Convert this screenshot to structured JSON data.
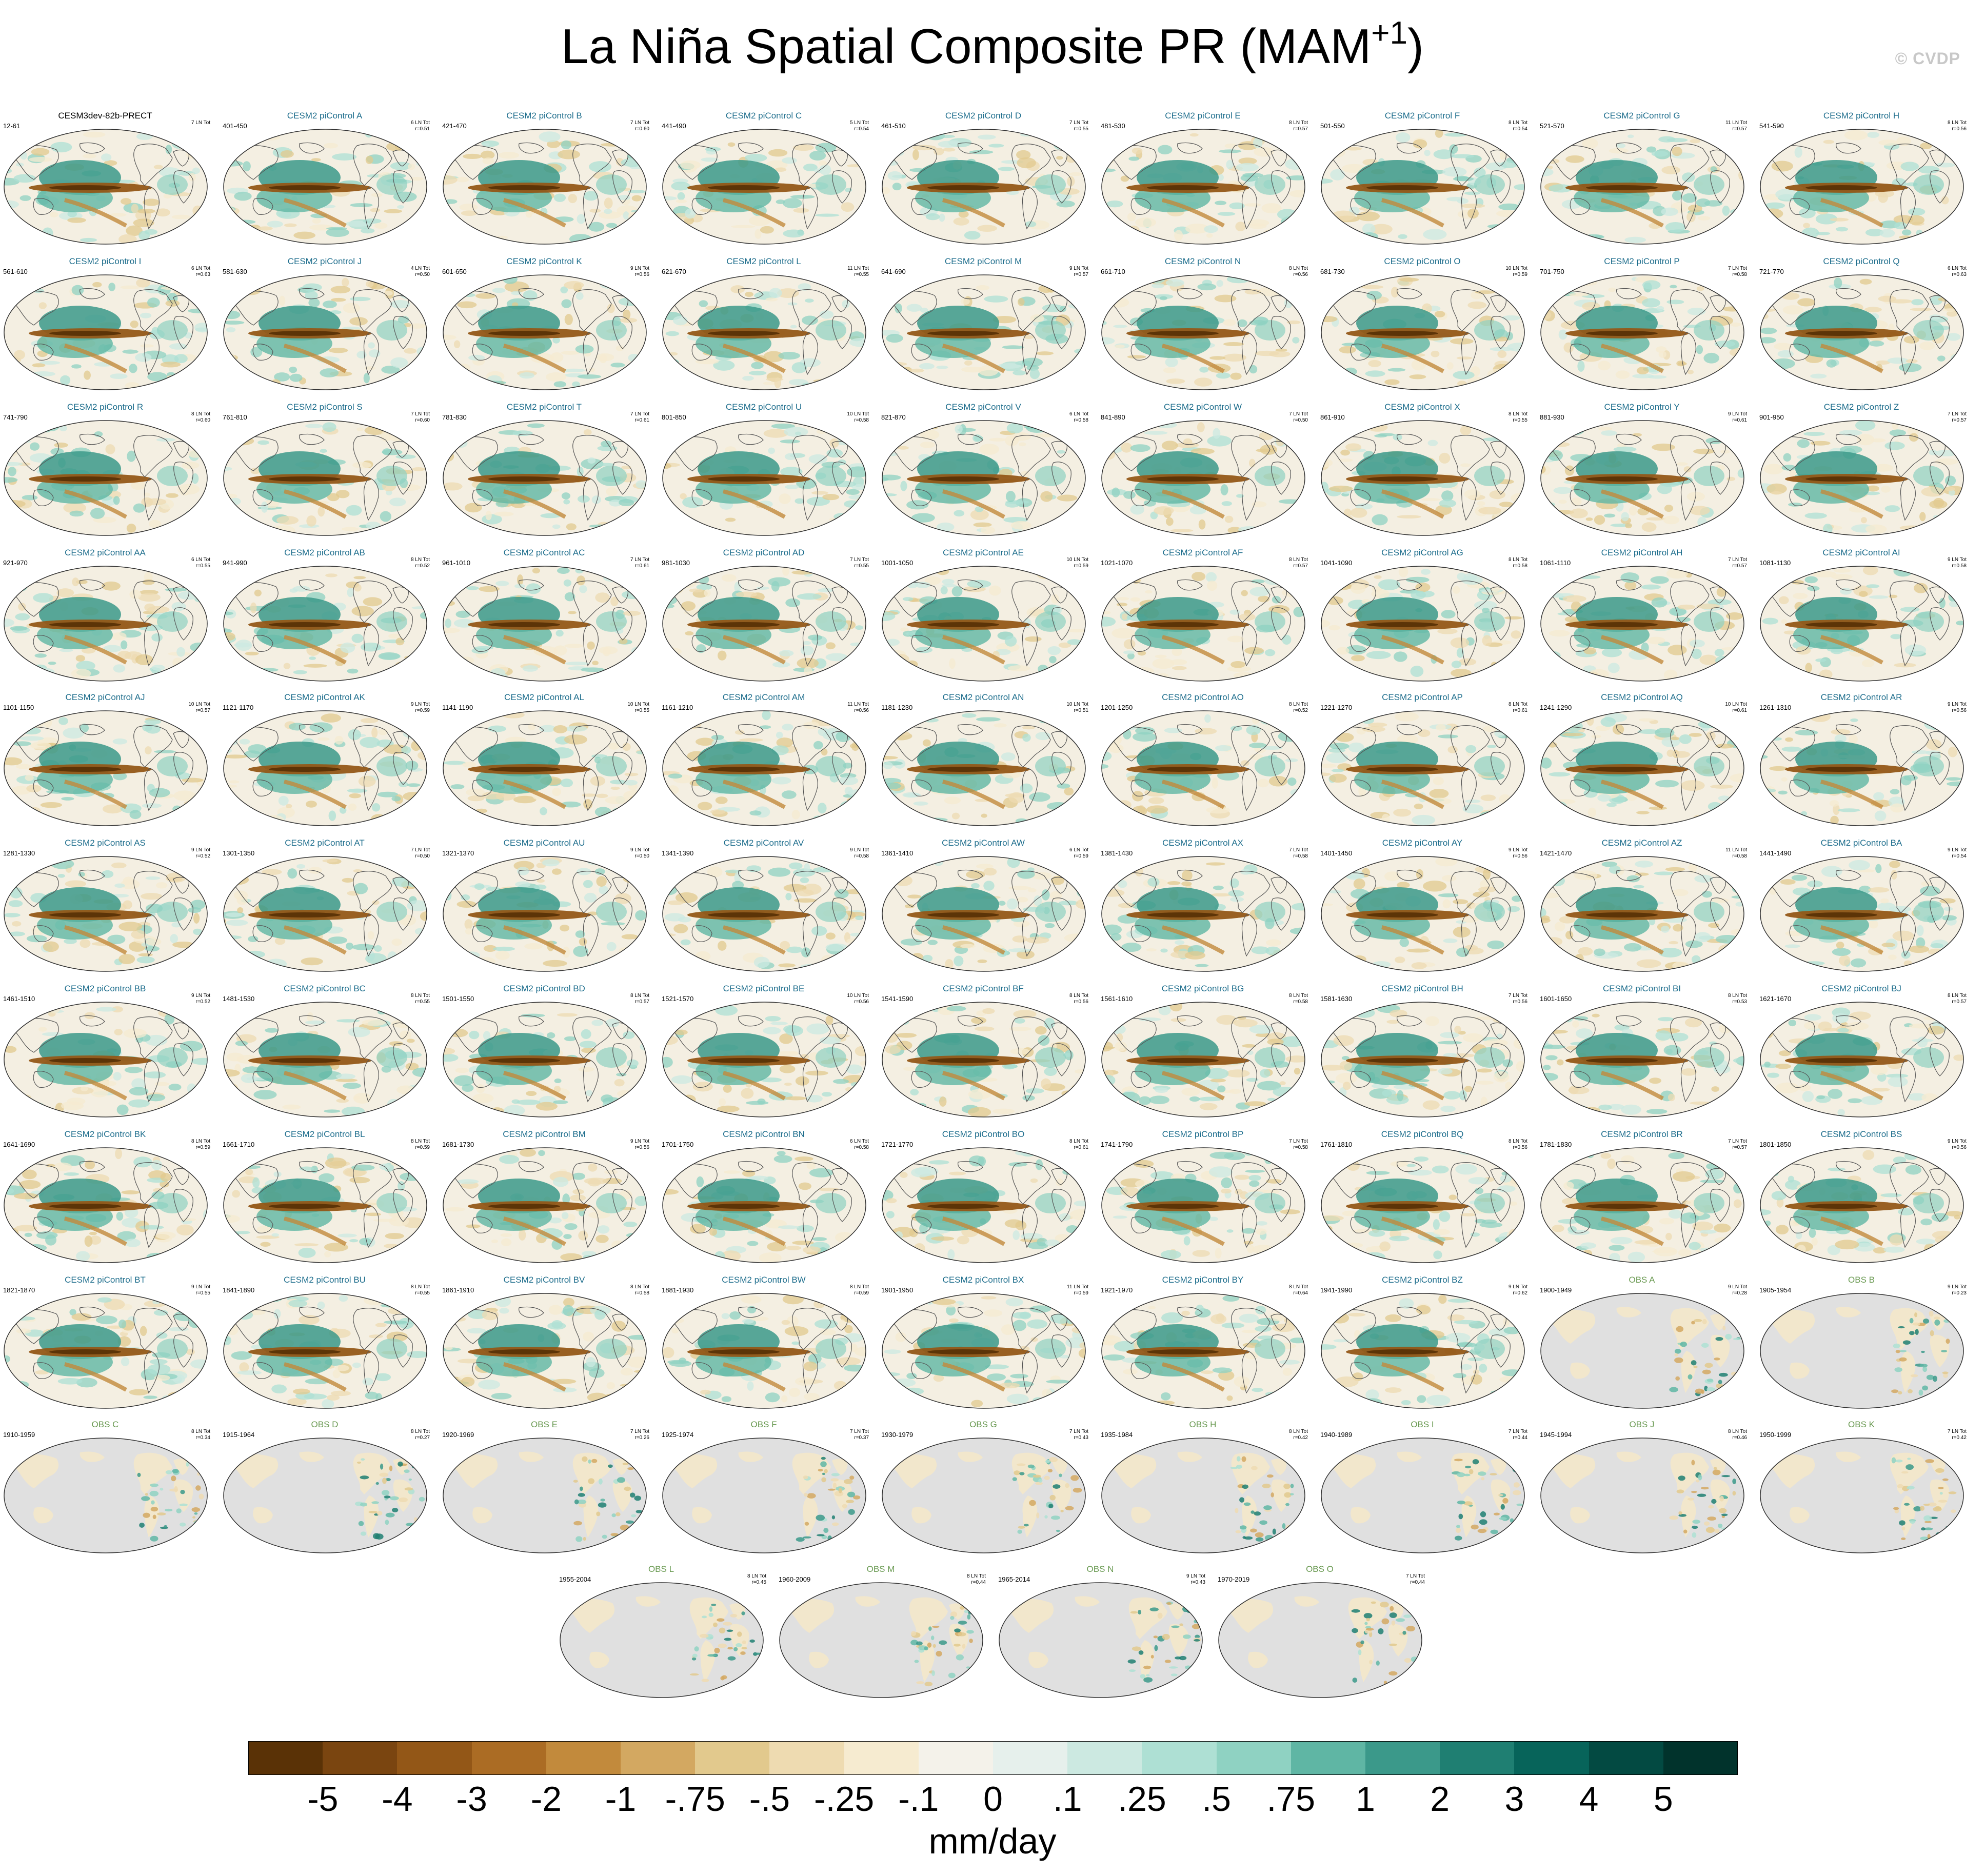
{
  "figure": {
    "title_main": "La Niña Spatial Composite PR (MAM",
    "title_sup": "+1",
    "title_close": ")",
    "credit": "© CVDP",
    "colors": {
      "model_title": "#1d6d8c",
      "obs_title": "#6a9a52",
      "first_title": "#000000",
      "land_obs": "#e0e0e0",
      "ocean_model": "#f4efe2"
    }
  },
  "chart_data": {
    "type": "heatmap",
    "title": "La Niña Spatial Composite PR (MAM+1)",
    "units": "mm/day",
    "colorbar": {
      "tick_labels": [
        "-5",
        "-4",
        "-3",
        "-2",
        "-1",
        "-.75",
        "-.5",
        "-.25",
        "-.1",
        "0",
        ".1",
        ".25",
        ".5",
        ".75",
        "1",
        "2",
        "3",
        "4",
        "5"
      ],
      "colors": [
        "#5a3206",
        "#7a4510",
        "#935717",
        "#ab6c24",
        "#c28a3c",
        "#d3a861",
        "#e2c98d",
        "#eedbb1",
        "#f6ebd0",
        "#f4f2ea",
        "#e6f0ec",
        "#cce9e1",
        "#aee0d4",
        "#8fd2c2",
        "#5fb6a4",
        "#3b998a",
        "#1f7f72",
        "#07645a",
        "#034a42",
        "#01332c"
      ]
    },
    "panels": [
      {
        "title": "CESM3dev-82b-PRECT",
        "years": "12-61",
        "ln": "7 LN Tot",
        "r": "",
        "kind": "first"
      },
      {
        "title": "CESM2 piControl A",
        "years": "401-450",
        "ln": "6 LN Tot",
        "r": "r=0.51",
        "kind": "model"
      },
      {
        "title": "CESM2 piControl B",
        "years": "421-470",
        "ln": "7 LN Tot",
        "r": "r=0.60",
        "kind": "model"
      },
      {
        "title": "CESM2 piControl C",
        "years": "441-490",
        "ln": "5 LN Tot",
        "r": "r=0.54",
        "kind": "model"
      },
      {
        "title": "CESM2 piControl D",
        "years": "461-510",
        "ln": "7 LN Tot",
        "r": "r=0.55",
        "kind": "model"
      },
      {
        "title": "CESM2 piControl E",
        "years": "481-530",
        "ln": "8 LN Tot",
        "r": "r=0.57",
        "kind": "model"
      },
      {
        "title": "CESM2 piControl F",
        "years": "501-550",
        "ln": "8 LN Tot",
        "r": "r=0.54",
        "kind": "model"
      },
      {
        "title": "CESM2 piControl G",
        "years": "521-570",
        "ln": "11 LN Tot",
        "r": "r=0.57",
        "kind": "model"
      },
      {
        "title": "CESM2 piControl H",
        "years": "541-590",
        "ln": "8 LN Tot",
        "r": "r=0.56",
        "kind": "model"
      },
      {
        "title": "CESM2 piControl I",
        "years": "561-610",
        "ln": "6 LN Tot",
        "r": "r=0.63",
        "kind": "model"
      },
      {
        "title": "CESM2 piControl J",
        "years": "581-630",
        "ln": "4 LN Tot",
        "r": "r=0.50",
        "kind": "model"
      },
      {
        "title": "CESM2 piControl K",
        "years": "601-650",
        "ln": "9 LN Tot",
        "r": "r=0.56",
        "kind": "model"
      },
      {
        "title": "CESM2 piControl L",
        "years": "621-670",
        "ln": "11 LN Tot",
        "r": "r=0.55",
        "kind": "model"
      },
      {
        "title": "CESM2 piControl M",
        "years": "641-690",
        "ln": "9 LN Tot",
        "r": "r=0.57",
        "kind": "model"
      },
      {
        "title": "CESM2 piControl N",
        "years": "661-710",
        "ln": "8 LN Tot",
        "r": "r=0.56",
        "kind": "model"
      },
      {
        "title": "CESM2 piControl O",
        "years": "681-730",
        "ln": "10 LN Tot",
        "r": "r=0.59",
        "kind": "model"
      },
      {
        "title": "CESM2 piControl P",
        "years": "701-750",
        "ln": "7 LN Tot",
        "r": "r=0.58",
        "kind": "model"
      },
      {
        "title": "CESM2 piControl Q",
        "years": "721-770",
        "ln": "6 LN Tot",
        "r": "r=0.63",
        "kind": "model"
      },
      {
        "title": "CESM2 piControl R",
        "years": "741-790",
        "ln": "8 LN Tot",
        "r": "r=0.60",
        "kind": "model"
      },
      {
        "title": "CESM2 piControl S",
        "years": "761-810",
        "ln": "7 LN Tot",
        "r": "r=0.60",
        "kind": "model"
      },
      {
        "title": "CESM2 piControl T",
        "years": "781-830",
        "ln": "7 LN Tot",
        "r": "r=0.61",
        "kind": "model"
      },
      {
        "title": "CESM2 piControl U",
        "years": "801-850",
        "ln": "10 LN Tot",
        "r": "r=0.58",
        "kind": "model"
      },
      {
        "title": "CESM2 piControl V",
        "years": "821-870",
        "ln": "6 LN Tot",
        "r": "r=0.58",
        "kind": "model"
      },
      {
        "title": "CESM2 piControl W",
        "years": "841-890",
        "ln": "7 LN Tot",
        "r": "r=0.50",
        "kind": "model"
      },
      {
        "title": "CESM2 piControl X",
        "years": "861-910",
        "ln": "8 LN Tot",
        "r": "r=0.55",
        "kind": "model"
      },
      {
        "title": "CESM2 piControl Y",
        "years": "881-930",
        "ln": "9 LN Tot",
        "r": "r=0.61",
        "kind": "model"
      },
      {
        "title": "CESM2 piControl Z",
        "years": "901-950",
        "ln": "7 LN Tot",
        "r": "r=0.57",
        "kind": "model"
      },
      {
        "title": "CESM2 piControl AA",
        "years": "921-970",
        "ln": "6 LN Tot",
        "r": "r=0.55",
        "kind": "model"
      },
      {
        "title": "CESM2 piControl AB",
        "years": "941-990",
        "ln": "8 LN Tot",
        "r": "r=0.52",
        "kind": "model"
      },
      {
        "title": "CESM2 piControl AC",
        "years": "961-1010",
        "ln": "7 LN Tot",
        "r": "r=0.61",
        "kind": "model"
      },
      {
        "title": "CESM2 piControl AD",
        "years": "981-1030",
        "ln": "7 LN Tot",
        "r": "r=0.55",
        "kind": "model"
      },
      {
        "title": "CESM2 piControl AE",
        "years": "1001-1050",
        "ln": "10 LN Tot",
        "r": "r=0.59",
        "kind": "model"
      },
      {
        "title": "CESM2 piControl AF",
        "years": "1021-1070",
        "ln": "8 LN Tot",
        "r": "r=0.57",
        "kind": "model"
      },
      {
        "title": "CESM2 piControl AG",
        "years": "1041-1090",
        "ln": "8 LN Tot",
        "r": "r=0.58",
        "kind": "model"
      },
      {
        "title": "CESM2 piControl AH",
        "years": "1061-1110",
        "ln": "7 LN Tot",
        "r": "r=0.57",
        "kind": "model"
      },
      {
        "title": "CESM2 piControl AI",
        "years": "1081-1130",
        "ln": "9 LN Tot",
        "r": "r=0.58",
        "kind": "model"
      },
      {
        "title": "CESM2 piControl AJ",
        "years": "1101-1150",
        "ln": "10 LN Tot",
        "r": "r=0.57",
        "kind": "model"
      },
      {
        "title": "CESM2 piControl AK",
        "years": "1121-1170",
        "ln": "9 LN Tot",
        "r": "r=0.59",
        "kind": "model"
      },
      {
        "title": "CESM2 piControl AL",
        "years": "1141-1190",
        "ln": "10 LN Tot",
        "r": "r=0.55",
        "kind": "model"
      },
      {
        "title": "CESM2 piControl AM",
        "years": "1161-1210",
        "ln": "11 LN Tot",
        "r": "r=0.56",
        "kind": "model"
      },
      {
        "title": "CESM2 piControl AN",
        "years": "1181-1230",
        "ln": "10 LN Tot",
        "r": "r=0.51",
        "kind": "model"
      },
      {
        "title": "CESM2 piControl AO",
        "years": "1201-1250",
        "ln": "8 LN Tot",
        "r": "r=0.52",
        "kind": "model"
      },
      {
        "title": "CESM2 piControl AP",
        "years": "1221-1270",
        "ln": "8 LN Tot",
        "r": "r=0.61",
        "kind": "model"
      },
      {
        "title": "CESM2 piControl AQ",
        "years": "1241-1290",
        "ln": "10 LN Tot",
        "r": "r=0.61",
        "kind": "model"
      },
      {
        "title": "CESM2 piControl AR",
        "years": "1261-1310",
        "ln": "9 LN Tot",
        "r": "r=0.56",
        "kind": "model"
      },
      {
        "title": "CESM2 piControl AS",
        "years": "1281-1330",
        "ln": "9 LN Tot",
        "r": "r=0.52",
        "kind": "model"
      },
      {
        "title": "CESM2 piControl AT",
        "years": "1301-1350",
        "ln": "7 LN Tot",
        "r": "r=0.50",
        "kind": "model"
      },
      {
        "title": "CESM2 piControl AU",
        "years": "1321-1370",
        "ln": "9 LN Tot",
        "r": "r=0.50",
        "kind": "model"
      },
      {
        "title": "CESM2 piControl AV",
        "years": "1341-1390",
        "ln": "9 LN Tot",
        "r": "r=0.58",
        "kind": "model"
      },
      {
        "title": "CESM2 piControl AW",
        "years": "1361-1410",
        "ln": "6 LN Tot",
        "r": "r=0.59",
        "kind": "model"
      },
      {
        "title": "CESM2 piControl AX",
        "years": "1381-1430",
        "ln": "7 LN Tot",
        "r": "r=0.58",
        "kind": "model"
      },
      {
        "title": "CESM2 piControl AY",
        "years": "1401-1450",
        "ln": "9 LN Tot",
        "r": "r=0.56",
        "kind": "model"
      },
      {
        "title": "CESM2 piControl AZ",
        "years": "1421-1470",
        "ln": "11 LN Tot",
        "r": "r=0.58",
        "kind": "model"
      },
      {
        "title": "CESM2 piControl BA",
        "years": "1441-1490",
        "ln": "9 LN Tot",
        "r": "r=0.54",
        "kind": "model"
      },
      {
        "title": "CESM2 piControl BB",
        "years": "1461-1510",
        "ln": "9 LN Tot",
        "r": "r=0.52",
        "kind": "model"
      },
      {
        "title": "CESM2 piControl BC",
        "years": "1481-1530",
        "ln": "8 LN Tot",
        "r": "r=0.55",
        "kind": "model"
      },
      {
        "title": "CESM2 piControl BD",
        "years": "1501-1550",
        "ln": "8 LN Tot",
        "r": "r=0.57",
        "kind": "model"
      },
      {
        "title": "CESM2 piControl BE",
        "years": "1521-1570",
        "ln": "10 LN Tot",
        "r": "r=0.56",
        "kind": "model"
      },
      {
        "title": "CESM2 piControl BF",
        "years": "1541-1590",
        "ln": "8 LN Tot",
        "r": "r=0.56",
        "kind": "model"
      },
      {
        "title": "CESM2 piControl BG",
        "years": "1561-1610",
        "ln": "8 LN Tot",
        "r": "r=0.58",
        "kind": "model"
      },
      {
        "title": "CESM2 piControl BH",
        "years": "1581-1630",
        "ln": "7 LN Tot",
        "r": "r=0.56",
        "kind": "model"
      },
      {
        "title": "CESM2 piControl BI",
        "years": "1601-1650",
        "ln": "8 LN Tot",
        "r": "r=0.53",
        "kind": "model"
      },
      {
        "title": "CESM2 piControl BJ",
        "years": "1621-1670",
        "ln": "8 LN Tot",
        "r": "r=0.57",
        "kind": "model"
      },
      {
        "title": "CESM2 piControl BK",
        "years": "1641-1690",
        "ln": "8 LN Tot",
        "r": "r=0.59",
        "kind": "model"
      },
      {
        "title": "CESM2 piControl BL",
        "years": "1661-1710",
        "ln": "8 LN Tot",
        "r": "r=0.59",
        "kind": "model"
      },
      {
        "title": "CESM2 piControl BM",
        "years": "1681-1730",
        "ln": "9 LN Tot",
        "r": "r=0.56",
        "kind": "model"
      },
      {
        "title": "CESM2 piControl BN",
        "years": "1701-1750",
        "ln": "6 LN Tot",
        "r": "r=0.58",
        "kind": "model"
      },
      {
        "title": "CESM2 piControl BO",
        "years": "1721-1770",
        "ln": "8 LN Tot",
        "r": "r=0.61",
        "kind": "model"
      },
      {
        "title": "CESM2 piControl BP",
        "years": "1741-1790",
        "ln": "7 LN Tot",
        "r": "r=0.58",
        "kind": "model"
      },
      {
        "title": "CESM2 piControl BQ",
        "years": "1761-1810",
        "ln": "8 LN Tot",
        "r": "r=0.56",
        "kind": "model"
      },
      {
        "title": "CESM2 piControl BR",
        "years": "1781-1830",
        "ln": "7 LN Tot",
        "r": "r=0.57",
        "kind": "model"
      },
      {
        "title": "CESM2 piControl BS",
        "years": "1801-1850",
        "ln": "9 LN Tot",
        "r": "r=0.56",
        "kind": "model"
      },
      {
        "title": "CESM2 piControl BT",
        "years": "1821-1870",
        "ln": "9 LN Tot",
        "r": "r=0.55",
        "kind": "model"
      },
      {
        "title": "CESM2 piControl BU",
        "years": "1841-1890",
        "ln": "8 LN Tot",
        "r": "r=0.55",
        "kind": "model"
      },
      {
        "title": "CESM2 piControl BV",
        "years": "1861-1910",
        "ln": "8 LN Tot",
        "r": "r=0.58",
        "kind": "model"
      },
      {
        "title": "CESM2 piControl BW",
        "years": "1881-1930",
        "ln": "8 LN Tot",
        "r": "r=0.59",
        "kind": "model"
      },
      {
        "title": "CESM2 piControl BX",
        "years": "1901-1950",
        "ln": "11 LN Tot",
        "r": "r=0.59",
        "kind": "model"
      },
      {
        "title": "CESM2 piControl BY",
        "years": "1921-1970",
        "ln": "8 LN Tot",
        "r": "r=0.64",
        "kind": "model"
      },
      {
        "title": "CESM2 piControl BZ",
        "years": "1941-1990",
        "ln": "9 LN Tot",
        "r": "r=0.62",
        "kind": "model"
      },
      {
        "title": "OBS A",
        "years": "1900-1949",
        "ln": "9 LN Tot",
        "r": "r=0.28",
        "kind": "obs"
      },
      {
        "title": "OBS B",
        "years": "1905-1954",
        "ln": "9 LN Tot",
        "r": "r=0.23",
        "kind": "obs"
      },
      {
        "title": "OBS C",
        "years": "1910-1959",
        "ln": "8 LN Tot",
        "r": "r=0.34",
        "kind": "obs"
      },
      {
        "title": "OBS D",
        "years": "1915-1964",
        "ln": "8 LN Tot",
        "r": "r=0.27",
        "kind": "obs"
      },
      {
        "title": "OBS E",
        "years": "1920-1969",
        "ln": "7 LN Tot",
        "r": "r=0.26",
        "kind": "obs"
      },
      {
        "title": "OBS F",
        "years": "1925-1974",
        "ln": "7 LN Tot",
        "r": "r=0.37",
        "kind": "obs"
      },
      {
        "title": "OBS G",
        "years": "1930-1979",
        "ln": "7 LN Tot",
        "r": "r=0.43",
        "kind": "obs"
      },
      {
        "title": "OBS H",
        "years": "1935-1984",
        "ln": "8 LN Tot",
        "r": "r=0.42",
        "kind": "obs"
      },
      {
        "title": "OBS I",
        "years": "1940-1989",
        "ln": "7 LN Tot",
        "r": "r=0.44",
        "kind": "obs"
      },
      {
        "title": "OBS J",
        "years": "1945-1994",
        "ln": "8 LN Tot",
        "r": "r=0.46",
        "kind": "obs"
      },
      {
        "title": "OBS K",
        "years": "1950-1999",
        "ln": "7 LN Tot",
        "r": "r=0.42",
        "kind": "obs"
      },
      {
        "title": "OBS L",
        "years": "1955-2004",
        "ln": "8 LN Tot",
        "r": "r=0.45",
        "kind": "obs"
      },
      {
        "title": "OBS M",
        "years": "1960-2009",
        "ln": "8 LN Tot",
        "r": "r=0.44",
        "kind": "obs"
      },
      {
        "title": "OBS N",
        "years": "1965-2014",
        "ln": "9 LN Tot",
        "r": "r=0.43",
        "kind": "obs"
      },
      {
        "title": "OBS O",
        "years": "1970-2019",
        "ln": "7 LN Tot",
        "r": "r=0.44",
        "kind": "obs"
      }
    ]
  }
}
